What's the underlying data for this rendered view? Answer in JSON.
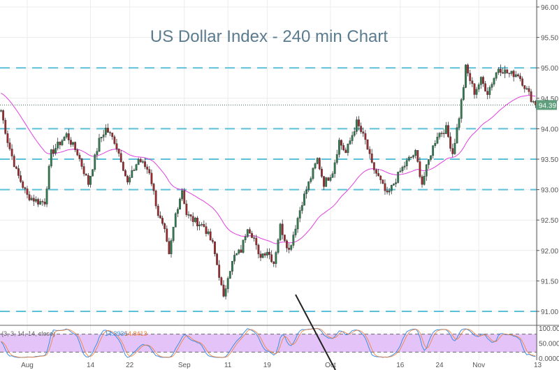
{
  "chart_data": {
    "type": "candlestick",
    "title": "US Dollar Index - 240 min Chart",
    "y_ticks": [
      "96.00",
      "95.50",
      "95.00",
      "94.50",
      "94.00",
      "93.50",
      "93.00",
      "92.50",
      "92.00",
      "91.50",
      "91.00"
    ],
    "ylim": [
      90.75,
      96.1
    ],
    "x_ticks": [
      {
        "label": "Aug",
        "bar": 12
      },
      {
        "label": "14",
        "bar": 41
      },
      {
        "label": "22",
        "bar": 59
      },
      {
        "label": "Sep",
        "bar": 84
      },
      {
        "label": "11",
        "bar": 104
      },
      {
        "label": "19",
        "bar": 122
      },
      {
        "label": "Oct",
        "bar": 151
      },
      {
        "label": "16",
        "bar": 183
      },
      {
        "label": "24",
        "bar": 201
      },
      {
        "label": "Nov",
        "bar": 219
      },
      {
        "label": "13",
        "bar": 246
      }
    ],
    "bar_count": 246,
    "last_price": "94.39",
    "horizontal_levels": [
      91.0,
      93.0,
      93.5,
      94.0,
      95.0
    ],
    "close_keypoints": [
      [
        0,
        94.3
      ],
      [
        3,
        93.8
      ],
      [
        7,
        93.3
      ],
      [
        12,
        92.9
      ],
      [
        17,
        92.8
      ],
      [
        20,
        92.8
      ],
      [
        23,
        93.6
      ],
      [
        30,
        93.9
      ],
      [
        35,
        93.6
      ],
      [
        40,
        93.1
      ],
      [
        45,
        93.8
      ],
      [
        48,
        94.0
      ],
      [
        52,
        93.8
      ],
      [
        55,
        93.5
      ],
      [
        58,
        93.1
      ],
      [
        63,
        93.5
      ],
      [
        68,
        93.3
      ],
      [
        72,
        92.6
      ],
      [
        75,
        92.3
      ],
      [
        77,
        91.9
      ],
      [
        80,
        92.6
      ],
      [
        83,
        93.0
      ],
      [
        85,
        92.6
      ],
      [
        88,
        92.5
      ],
      [
        93,
        92.4
      ],
      [
        97,
        92.1
      ],
      [
        100,
        91.6
      ],
      [
        102,
        91.2
      ],
      [
        104,
        91.6
      ],
      [
        107,
        91.9
      ],
      [
        110,
        92.0
      ],
      [
        113,
        92.4
      ],
      [
        116,
        92.2
      ],
      [
        118,
        91.9
      ],
      [
        122,
        92.0
      ],
      [
        125,
        91.8
      ],
      [
        128,
        92.4
      ],
      [
        132,
        92.0
      ],
      [
        135,
        92.4
      ],
      [
        138,
        92.8
      ],
      [
        142,
        93.2
      ],
      [
        145,
        93.5
      ],
      [
        148,
        93.1
      ],
      [
        152,
        93.3
      ],
      [
        155,
        93.8
      ],
      [
        158,
        93.6
      ],
      [
        163,
        94.1
      ],
      [
        167,
        93.8
      ],
      [
        170,
        93.4
      ],
      [
        173,
        93.2
      ],
      [
        177,
        92.9
      ],
      [
        180,
        93.1
      ],
      [
        183,
        93.3
      ],
      [
        187,
        93.5
      ],
      [
        190,
        93.6
      ],
      [
        193,
        93.1
      ],
      [
        197,
        93.6
      ],
      [
        200,
        93.9
      ],
      [
        204,
        94.0
      ],
      [
        207,
        93.6
      ],
      [
        210,
        94.2
      ],
      [
        212,
        94.7
      ],
      [
        213,
        95.0
      ],
      [
        217,
        94.6
      ],
      [
        220,
        94.8
      ],
      [
        223,
        94.6
      ],
      [
        228,
        95.0
      ],
      [
        233,
        94.9
      ],
      [
        237,
        94.9
      ],
      [
        240,
        94.7
      ],
      [
        243,
        94.5
      ],
      [
        245,
        94.39
      ]
    ],
    "moving_average": {
      "name": "MA",
      "color": "#e040e0"
    },
    "indicator": {
      "label": "(3, 3, 14, 14, close)",
      "k_value": "14.3936",
      "d_value": "14.8413",
      "k_color": "#3a8ee6",
      "d_color": "#f07a30",
      "y_ticks": [
        "100.000",
        "50.0000",
        "0.0000"
      ],
      "bands": [
        20,
        80
      ]
    },
    "colors": {
      "up": "#2e7d4f",
      "down": "#a0282c",
      "level": "#5bc0d8",
      "last": "#5e9e7c"
    }
  }
}
